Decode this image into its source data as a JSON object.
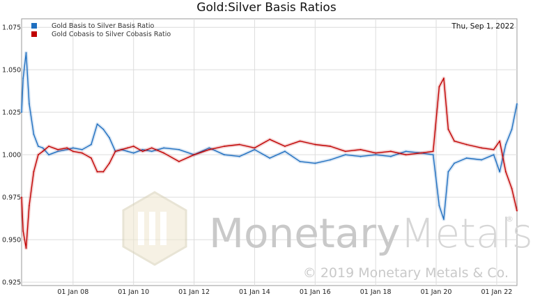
{
  "chart_data": {
    "type": "line",
    "title": "Gold:Silver Basis Ratios",
    "date_label": "Thu, Sep 1, 2022",
    "xlabel": "",
    "ylabel": "",
    "xlim": [
      2006.3,
      2022.67
    ],
    "ylim": [
      0.923,
      1.08
    ],
    "x_ticks": [
      {
        "label": "01 Jan 08",
        "x": 2008
      },
      {
        "label": "01 Jan 10",
        "x": 2010
      },
      {
        "label": "01 Jan 12",
        "x": 2012
      },
      {
        "label": "01 Jan 14",
        "x": 2014
      },
      {
        "label": "01 Jan 16",
        "x": 2016
      },
      {
        "label": "01 Jan 18",
        "x": 2018
      },
      {
        "label": "01 Jan 20",
        "x": 2020
      },
      {
        "label": "01 Jan 22",
        "x": 2022
      }
    ],
    "y_ticks": [
      {
        "label": "0.925",
        "y": 0.925
      },
      {
        "label": "0.950",
        "y": 0.95
      },
      {
        "label": "0.975",
        "y": 0.975
      },
      {
        "label": "1.000",
        "y": 1.0
      },
      {
        "label": "1.025",
        "y": 1.025
      },
      {
        "label": "1.050",
        "y": 1.05
      },
      {
        "label": "1.075",
        "y": 1.075
      }
    ],
    "grid": true,
    "legend_position": "top-left",
    "series": [
      {
        "name": "Gold Basis to Silver Basis Ratio",
        "color": "#1f6fc0",
        "x": [
          2006.3,
          2006.35,
          2006.45,
          2006.55,
          2006.7,
          2006.85,
          2007.0,
          2007.2,
          2007.5,
          2007.8,
          2008.0,
          2008.3,
          2008.6,
          2008.8,
          2009.0,
          2009.2,
          2009.4,
          2009.6,
          2009.8,
          2010.0,
          2010.3,
          2010.6,
          2011.0,
          2011.5,
          2012.0,
          2012.5,
          2013.0,
          2013.5,
          2014.0,
          2014.5,
          2015.0,
          2015.5,
          2016.0,
          2016.5,
          2017.0,
          2017.5,
          2018.0,
          2018.5,
          2019.0,
          2019.5,
          2019.9,
          2020.1,
          2020.25,
          2020.4,
          2020.6,
          2021.0,
          2021.5,
          2021.9,
          2022.1,
          2022.3,
          2022.5,
          2022.67
        ],
        "y": [
          1.025,
          1.045,
          1.06,
          1.03,
          1.012,
          1.005,
          1.004,
          1.0,
          1.002,
          1.003,
          1.004,
          1.003,
          1.006,
          1.018,
          1.015,
          1.01,
          1.002,
          1.003,
          1.002,
          1.001,
          1.003,
          1.002,
          1.004,
          1.003,
          1.0,
          1.004,
          1.0,
          0.999,
          1.003,
          0.998,
          1.002,
          0.996,
          0.995,
          0.997,
          1.0,
          0.999,
          1.0,
          0.999,
          1.002,
          1.001,
          1.0,
          0.97,
          0.962,
          0.99,
          0.995,
          0.998,
          0.997,
          1.0,
          0.99,
          1.006,
          1.015,
          1.03
        ]
      },
      {
        "name": "Gold Cobasis to Silver Cobasis Ratio",
        "color": "#c00000",
        "x": [
          2006.3,
          2006.35,
          2006.45,
          2006.55,
          2006.7,
          2006.85,
          2007.0,
          2007.2,
          2007.5,
          2007.8,
          2008.0,
          2008.3,
          2008.6,
          2008.8,
          2009.0,
          2009.2,
          2009.4,
          2009.6,
          2009.8,
          2010.0,
          2010.3,
          2010.6,
          2011.0,
          2011.5,
          2012.0,
          2012.5,
          2013.0,
          2013.5,
          2014.0,
          2014.5,
          2015.0,
          2015.5,
          2016.0,
          2016.5,
          2017.0,
          2017.5,
          2018.0,
          2018.5,
          2019.0,
          2019.5,
          2019.9,
          2020.1,
          2020.25,
          2020.4,
          2020.6,
          2021.0,
          2021.5,
          2021.9,
          2022.1,
          2022.3,
          2022.5,
          2022.67
        ],
        "y": [
          0.975,
          0.955,
          0.945,
          0.97,
          0.99,
          1.0,
          1.002,
          1.005,
          1.003,
          1.004,
          1.002,
          1.001,
          0.998,
          0.99,
          0.99,
          0.995,
          1.002,
          1.003,
          1.004,
          1.005,
          1.002,
          1.004,
          1.001,
          0.996,
          1.0,
          1.003,
          1.005,
          1.006,
          1.004,
          1.009,
          1.005,
          1.008,
          1.006,
          1.005,
          1.002,
          1.003,
          1.001,
          1.002,
          1.0,
          1.001,
          1.002,
          1.04,
          1.045,
          1.015,
          1.008,
          1.006,
          1.004,
          1.003,
          1.008,
          0.99,
          0.98,
          0.967
        ]
      }
    ],
    "watermark": {
      "brand": "MonetaryMetals",
      "brand_part1": "Monetary",
      "brand_part2": "Metals",
      "registered": "®",
      "copyright": "© 2019 Monetary Metals & Co."
    }
  }
}
